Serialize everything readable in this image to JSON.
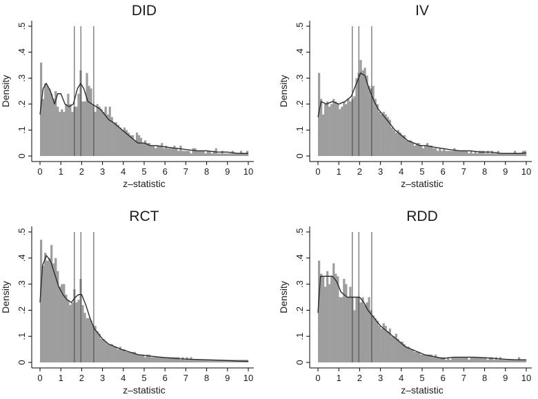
{
  "chart_data": [
    {
      "type": "histogram-density",
      "title": "DID",
      "xlabel": "z–statistic",
      "ylabel": "Density",
      "xlim": [
        0,
        10
      ],
      "ylim": [
        0,
        0.5
      ],
      "xticks": [
        "0",
        "1",
        "2",
        "3",
        "4",
        "5",
        "6",
        "7",
        "8",
        "9",
        "10"
      ],
      "yticks": [
        "0",
        ".1",
        ".2",
        ".3",
        ".4",
        ".5"
      ],
      "critical_values": [
        1.65,
        1.96,
        2.58
      ],
      "bin_width": 0.1,
      "bars": [
        0.36,
        0.22,
        0.28,
        0.27,
        0.26,
        0.24,
        0.22,
        0.25,
        0.19,
        0.17,
        0.18,
        0.17,
        0.2,
        0.24,
        0.2,
        0.17,
        0.19,
        0.19,
        0.24,
        0.33,
        0.21,
        0.21,
        0.32,
        0.27,
        0.26,
        0.2,
        0.17,
        0.2,
        0.19,
        0.18,
        0.17,
        0.19,
        0.16,
        0.19,
        0.15,
        0.13,
        0.13,
        0.12,
        0.11,
        0.1,
        0.11,
        0.1,
        0.09,
        0.08,
        0.08,
        0.06,
        0.09,
        0.08,
        0.07,
        0.05,
        0.06,
        0.05,
        0.05,
        0.04,
        0.04,
        0.03,
        0.04,
        0.04,
        0.05,
        0.03,
        0.04,
        0.03,
        0.03,
        0.03,
        0.04,
        0.03,
        0.02,
        0.04,
        0.02,
        0.02,
        0.02,
        0.02,
        0.01,
        0.03,
        0.03,
        0.02,
        0.02,
        0.02,
        0.02,
        0.01,
        0.02,
        0.02,
        0.01,
        0.02,
        0.03,
        0.01,
        0.01,
        0.02,
        0.01,
        0.01,
        0.01,
        0.01,
        0.02,
        0.01,
        0.01,
        0.01,
        0.02,
        0.01,
        0.01,
        0.02
      ],
      "density": [
        [
          0,
          0.16
        ],
        [
          0.15,
          0.26
        ],
        [
          0.3,
          0.28
        ],
        [
          0.5,
          0.25
        ],
        [
          0.7,
          0.2
        ],
        [
          0.85,
          0.24
        ],
        [
          1.0,
          0.24
        ],
        [
          1.2,
          0.2
        ],
        [
          1.4,
          0.19
        ],
        [
          1.6,
          0.2
        ],
        [
          1.8,
          0.26
        ],
        [
          1.95,
          0.28
        ],
        [
          2.1,
          0.26
        ],
        [
          2.3,
          0.21
        ],
        [
          2.5,
          0.2
        ],
        [
          2.7,
          0.19
        ],
        [
          2.9,
          0.18
        ],
        [
          3.1,
          0.16
        ],
        [
          3.3,
          0.14
        ],
        [
          3.5,
          0.13
        ],
        [
          3.8,
          0.11
        ],
        [
          4.1,
          0.09
        ],
        [
          4.4,
          0.07
        ],
        [
          4.7,
          0.05
        ],
        [
          5.0,
          0.05
        ],
        [
          5.3,
          0.04
        ],
        [
          5.6,
          0.04
        ],
        [
          6.0,
          0.035
        ],
        [
          6.5,
          0.03
        ],
        [
          7.0,
          0.025
        ],
        [
          7.5,
          0.02
        ],
        [
          8.0,
          0.02
        ],
        [
          8.5,
          0.015
        ],
        [
          9.0,
          0.015
        ],
        [
          9.5,
          0.01
        ],
        [
          10,
          0.01
        ]
      ]
    },
    {
      "type": "histogram-density",
      "title": "IV",
      "xlabel": "z–statistic",
      "ylabel": "Density",
      "xlim": [
        0,
        10
      ],
      "ylim": [
        0,
        0.5
      ],
      "xticks": [
        "0",
        "1",
        "2",
        "3",
        "4",
        "5",
        "6",
        "7",
        "8",
        "9",
        "10"
      ],
      "yticks": [
        "0",
        ".1",
        ".2",
        ".3",
        ".4",
        ".5"
      ],
      "critical_values": [
        1.65,
        1.96,
        2.58
      ],
      "bin_width": 0.1,
      "bars": [
        0.32,
        0.22,
        0.16,
        0.2,
        0.21,
        0.19,
        0.2,
        0.22,
        0.21,
        0.2,
        0.18,
        0.19,
        0.21,
        0.2,
        0.22,
        0.21,
        0.22,
        0.23,
        0.3,
        0.32,
        0.37,
        0.33,
        0.34,
        0.31,
        0.27,
        0.26,
        0.27,
        0.22,
        0.2,
        0.17,
        0.16,
        0.17,
        0.16,
        0.15,
        0.14,
        0.11,
        0.1,
        0.09,
        0.1,
        0.09,
        0.08,
        0.08,
        0.06,
        0.06,
        0.06,
        0.05,
        0.04,
        0.05,
        0.05,
        0.04,
        0.03,
        0.04,
        0.05,
        0.04,
        0.04,
        0.03,
        0.03,
        0.02,
        0.03,
        0.02,
        0.03,
        0.02,
        0.02,
        0.02,
        0.02,
        0.03,
        0.02,
        0.02,
        0.02,
        0.02,
        0.02,
        0.02,
        0.01,
        0.02,
        0.01,
        0.02,
        0.01,
        0.02,
        0.02,
        0.02,
        0.01,
        0.02,
        0.01,
        0.02,
        0.01,
        0.01,
        0.02,
        0.01,
        0.01,
        0.01,
        0.01,
        0.01,
        0.01,
        0.01,
        0.02,
        0.01,
        0.01,
        0.01,
        0.02,
        0.02
      ],
      "density": [
        [
          0,
          0.15
        ],
        [
          0.15,
          0.21
        ],
        [
          0.4,
          0.2
        ],
        [
          0.7,
          0.21
        ],
        [
          1.0,
          0.2
        ],
        [
          1.3,
          0.21
        ],
        [
          1.6,
          0.23
        ],
        [
          1.85,
          0.28
        ],
        [
          2.05,
          0.32
        ],
        [
          2.25,
          0.31
        ],
        [
          2.45,
          0.26
        ],
        [
          2.7,
          0.21
        ],
        [
          2.9,
          0.18
        ],
        [
          3.1,
          0.16
        ],
        [
          3.4,
          0.13
        ],
        [
          3.7,
          0.1
        ],
        [
          4.0,
          0.08
        ],
        [
          4.3,
          0.06
        ],
        [
          4.6,
          0.05
        ],
        [
          4.9,
          0.04
        ],
        [
          5.2,
          0.04
        ],
        [
          5.5,
          0.035
        ],
        [
          5.9,
          0.03
        ],
        [
          6.3,
          0.025
        ],
        [
          6.8,
          0.02
        ],
        [
          7.3,
          0.02
        ],
        [
          7.8,
          0.015
        ],
        [
          8.3,
          0.015
        ],
        [
          8.8,
          0.01
        ],
        [
          9.3,
          0.01
        ],
        [
          9.7,
          0.01
        ],
        [
          10,
          0.012
        ]
      ]
    },
    {
      "type": "histogram-density",
      "title": "RCT",
      "xlabel": "z–statistic",
      "ylabel": "Density",
      "xlim": [
        0,
        10
      ],
      "ylim": [
        0,
        0.5
      ],
      "xticks": [
        "0",
        "1",
        "2",
        "3",
        "4",
        "5",
        "6",
        "7",
        "8",
        "9",
        "10"
      ],
      "yticks": [
        "0",
        ".1",
        ".2",
        ".3",
        ".4",
        ".5"
      ],
      "critical_values": [
        1.65,
        1.96,
        2.58
      ],
      "bin_width": 0.1,
      "bars": [
        0.47,
        0.37,
        0.42,
        0.39,
        0.4,
        0.45,
        0.38,
        0.4,
        0.35,
        0.29,
        0.3,
        0.3,
        0.26,
        0.24,
        0.22,
        0.23,
        0.28,
        0.23,
        0.24,
        0.32,
        0.22,
        0.19,
        0.17,
        0.17,
        0.16,
        0.14,
        0.14,
        0.12,
        0.11,
        0.09,
        0.09,
        0.08,
        0.07,
        0.07,
        0.07,
        0.06,
        0.06,
        0.05,
        0.06,
        0.05,
        0.05,
        0.04,
        0.04,
        0.04,
        0.04,
        0.04,
        0.03,
        0.03,
        0.03,
        0.03,
        0.02,
        0.03,
        0.03,
        0.02,
        0.02,
        0.02,
        0.02,
        0.02,
        0.02,
        0.02,
        0.02,
        0.02,
        0.02,
        0.02,
        0.02,
        0.02,
        0.02,
        0.01,
        0.02,
        0.01,
        0.02,
        0.01,
        0.02,
        0.01,
        0.01,
        0.01,
        0.01,
        0.01,
        0.01,
        0.01,
        0.01,
        0.01,
        0.01,
        0.01,
        0.01,
        0.01,
        0.01,
        0.01,
        0.01,
        0.01,
        0.01,
        0.01,
        0.01,
        0.01,
        0.01,
        0.01,
        0.01,
        0.01,
        0.01,
        0.01
      ],
      "density": [
        [
          0,
          0.23
        ],
        [
          0.12,
          0.37
        ],
        [
          0.3,
          0.41
        ],
        [
          0.5,
          0.39
        ],
        [
          0.7,
          0.34
        ],
        [
          0.9,
          0.29
        ],
        [
          1.1,
          0.26
        ],
        [
          1.3,
          0.24
        ],
        [
          1.5,
          0.23
        ],
        [
          1.7,
          0.25
        ],
        [
          1.85,
          0.26
        ],
        [
          2.0,
          0.26
        ],
        [
          2.2,
          0.22
        ],
        [
          2.4,
          0.17
        ],
        [
          2.6,
          0.13
        ],
        [
          2.8,
          0.11
        ],
        [
          3.0,
          0.09
        ],
        [
          3.3,
          0.07
        ],
        [
          3.6,
          0.06
        ],
        [
          3.9,
          0.05
        ],
        [
          4.3,
          0.04
        ],
        [
          4.7,
          0.03
        ],
        [
          5.2,
          0.025
        ],
        [
          5.8,
          0.02
        ],
        [
          6.5,
          0.015
        ],
        [
          7.2,
          0.012
        ],
        [
          8.0,
          0.01
        ],
        [
          8.8,
          0.008
        ],
        [
          9.5,
          0.005
        ],
        [
          10,
          0.004
        ]
      ]
    },
    {
      "type": "histogram-density",
      "title": "RDD",
      "xlabel": "z–statistic",
      "ylabel": "Density",
      "xlim": [
        0,
        10
      ],
      "ylim": [
        0,
        0.5
      ],
      "xticks": [
        "0",
        "1",
        "2",
        "3",
        "4",
        "5",
        "6",
        "7",
        "8",
        "9",
        "10"
      ],
      "yticks": [
        "0",
        ".1",
        ".2",
        ".3",
        ".4",
        ".5"
      ],
      "critical_values": [
        1.65,
        1.96,
        2.58
      ],
      "bin_width": 0.1,
      "bars": [
        0.39,
        0.34,
        0.33,
        0.29,
        0.35,
        0.3,
        0.33,
        0.38,
        0.34,
        0.33,
        0.25,
        0.25,
        0.32,
        0.3,
        0.25,
        0.29,
        0.25,
        0.2,
        0.25,
        0.25,
        0.23,
        0.25,
        0.22,
        0.23,
        0.25,
        0.2,
        0.18,
        0.17,
        0.16,
        0.14,
        0.13,
        0.15,
        0.14,
        0.12,
        0.13,
        0.1,
        0.1,
        0.11,
        0.09,
        0.08,
        0.08,
        0.07,
        0.06,
        0.06,
        0.05,
        0.05,
        0.04,
        0.04,
        0.04,
        0.03,
        0.03,
        0.03,
        0.03,
        0.03,
        0.03,
        0.02,
        0.03,
        0.02,
        0.02,
        0.02,
        0.02,
        0.01,
        0.02,
        0.01,
        0.02,
        0.02,
        0.02,
        0.02,
        0.02,
        0.02,
        0.02,
        0.02,
        0.01,
        0.02,
        0.02,
        0.02,
        0.02,
        0.02,
        0.02,
        0.02,
        0.02,
        0.01,
        0.02,
        0.02,
        0.01,
        0.02,
        0.01,
        0.02,
        0.01,
        0.01,
        0.01,
        0.01,
        0.01,
        0.01,
        0.01,
        0.01,
        0.02,
        0.01,
        0.01,
        0.01
      ],
      "density": [
        [
          0,
          0.19
        ],
        [
          0.12,
          0.33
        ],
        [
          0.4,
          0.33
        ],
        [
          0.7,
          0.33
        ],
        [
          0.9,
          0.31
        ],
        [
          1.1,
          0.27
        ],
        [
          1.4,
          0.25
        ],
        [
          1.7,
          0.25
        ],
        [
          2.0,
          0.25
        ],
        [
          2.2,
          0.23
        ],
        [
          2.4,
          0.2
        ],
        [
          2.6,
          0.18
        ],
        [
          2.8,
          0.16
        ],
        [
          3.0,
          0.14
        ],
        [
          3.3,
          0.12
        ],
        [
          3.6,
          0.1
        ],
        [
          3.9,
          0.08
        ],
        [
          4.2,
          0.06
        ],
        [
          4.5,
          0.05
        ],
        [
          4.8,
          0.04
        ],
        [
          5.1,
          0.03
        ],
        [
          5.4,
          0.025
        ],
        [
          5.7,
          0.02
        ],
        [
          6.0,
          0.015
        ],
        [
          6.5,
          0.02
        ],
        [
          7.0,
          0.02
        ],
        [
          7.5,
          0.02
        ],
        [
          8.0,
          0.018
        ],
        [
          8.5,
          0.015
        ],
        [
          9.0,
          0.012
        ],
        [
          9.5,
          0.01
        ],
        [
          10,
          0.01
        ]
      ]
    }
  ]
}
